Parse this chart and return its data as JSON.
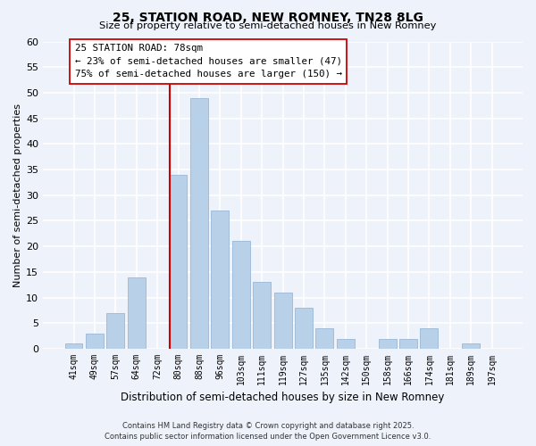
{
  "title": "25, STATION ROAD, NEW ROMNEY, TN28 8LG",
  "subtitle": "Size of property relative to semi-detached houses in New Romney",
  "xlabel": "Distribution of semi-detached houses by size in New Romney",
  "ylabel": "Number of semi-detached properties",
  "bar_color": "#b8d0e8",
  "bar_edge_color": "#9ab8d8",
  "background_color": "#eef2fa",
  "grid_color": "#ffffff",
  "categories": [
    "41sqm",
    "49sqm",
    "57sqm",
    "64sqm",
    "72sqm",
    "80sqm",
    "88sqm",
    "96sqm",
    "103sqm",
    "111sqm",
    "119sqm",
    "127sqm",
    "135sqm",
    "142sqm",
    "150sqm",
    "158sqm",
    "166sqm",
    "174sqm",
    "181sqm",
    "189sqm",
    "197sqm"
  ],
  "values": [
    1,
    3,
    7,
    14,
    0,
    34,
    49,
    27,
    21,
    13,
    11,
    8,
    4,
    2,
    0,
    2,
    2,
    4,
    0,
    1,
    0
  ],
  "ylim": [
    0,
    60
  ],
  "yticks": [
    0,
    5,
    10,
    15,
    20,
    25,
    30,
    35,
    40,
    45,
    50,
    55,
    60
  ],
  "vline_color": "#cc0000",
  "vline_x_index": 5,
  "annotation_title": "25 STATION ROAD: 78sqm",
  "annotation_line1": "← 23% of semi-detached houses are smaller (47)",
  "annotation_line2": "75% of semi-detached houses are larger (150) →",
  "annotation_box_color": "#ffffff",
  "annotation_box_edge": "#cc0000",
  "footer_line1": "Contains HM Land Registry data © Crown copyright and database right 2025.",
  "footer_line2": "Contains public sector information licensed under the Open Government Licence v3.0."
}
